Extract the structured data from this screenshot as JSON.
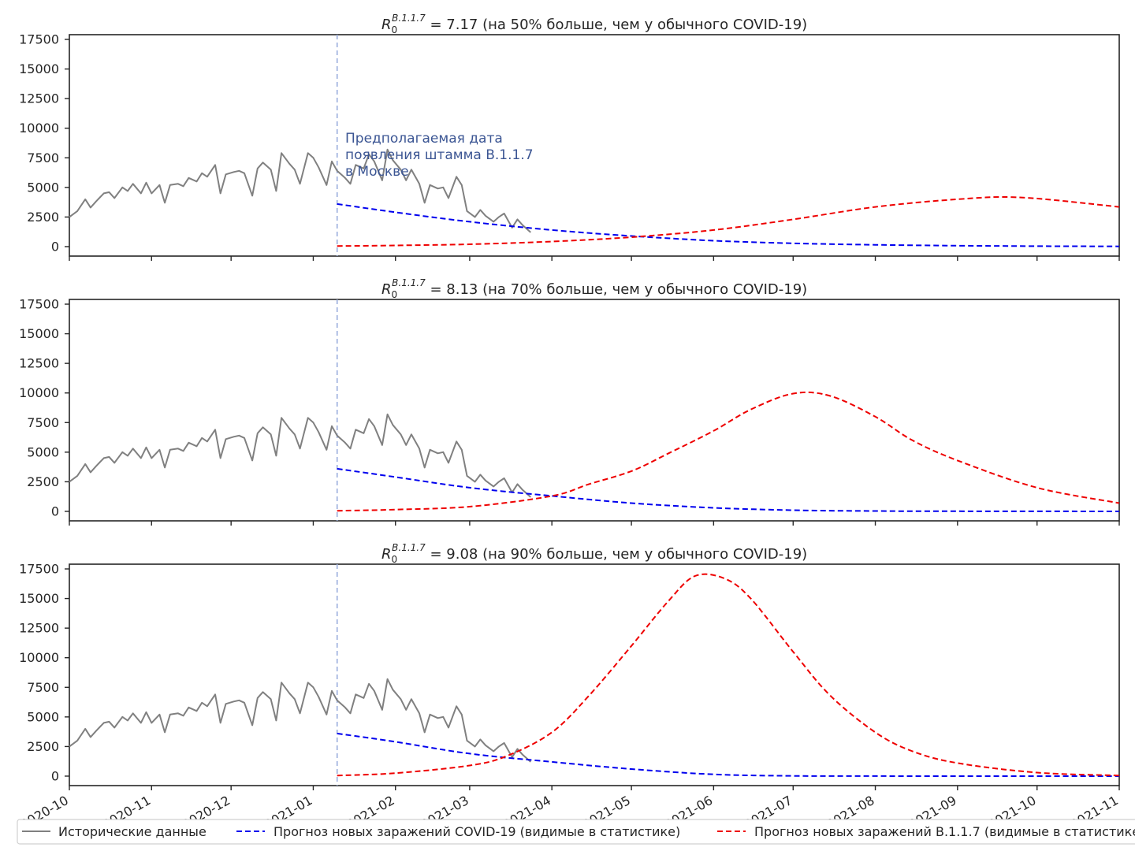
{
  "chart_data": {
    "type": "line",
    "x_ticks": [
      "2020-10",
      "2020-11",
      "2020-12",
      "2021-01",
      "2021-02",
      "2021-03",
      "2021-04",
      "2021-05",
      "2021-06",
      "2021-07",
      "2021-08",
      "2021-09",
      "2021-10",
      "2021-11"
    ],
    "xlim": [
      "2020-10-01",
      "2021-11-01"
    ],
    "y_ticks": [
      0,
      2500,
      5000,
      7500,
      10000,
      12500,
      15000,
      17500
    ],
    "ylim": [
      -800,
      17900
    ],
    "legend_position": "bottom",
    "legend": [
      {
        "label": "Исторические данные",
        "color": "#808080",
        "style": "solid"
      },
      {
        "label": "Прогноз новых заражений COVID-19 (видимые в статистике)",
        "color": "#0000ee",
        "style": "dashed"
      },
      {
        "label": "Прогноз новых заражений В.1.1.7 (видимые в статистике)",
        "color": "#ee0000",
        "style": "dashed"
      }
    ],
    "vline": {
      "date": "2021-01-10",
      "color": "#9aaedd"
    },
    "annotation": {
      "lines": [
        "Предполагаемая дата",
        "появления штамма В.1.1.7",
        "в Москве"
      ],
      "color": "#3b5593"
    },
    "historical": {
      "dates": [
        "2020-10-01",
        "2020-10-04",
        "2020-10-07",
        "2020-10-09",
        "2020-10-11",
        "2020-10-14",
        "2020-10-16",
        "2020-10-18",
        "2020-10-21",
        "2020-10-23",
        "2020-10-25",
        "2020-10-28",
        "2020-10-30",
        "2020-11-01",
        "2020-11-04",
        "2020-11-06",
        "2020-11-08",
        "2020-11-11",
        "2020-11-13",
        "2020-11-15",
        "2020-11-18",
        "2020-11-20",
        "2020-11-22",
        "2020-11-25",
        "2020-11-27",
        "2020-11-29",
        "2020-12-02",
        "2020-12-04",
        "2020-12-06",
        "2020-12-09",
        "2020-12-11",
        "2020-12-13",
        "2020-12-16",
        "2020-12-18",
        "2020-12-20",
        "2020-12-23",
        "2020-12-25",
        "2020-12-27",
        "2020-12-30",
        "2021-01-01",
        "2021-01-03",
        "2021-01-06",
        "2021-01-08",
        "2021-01-10",
        "2021-01-13",
        "2021-01-15",
        "2021-01-17",
        "2021-01-20",
        "2021-01-22",
        "2021-01-24",
        "2021-01-27",
        "2021-01-29",
        "2021-01-31",
        "2021-02-03",
        "2021-02-05",
        "2021-02-07",
        "2021-02-10",
        "2021-02-12",
        "2021-02-14",
        "2021-02-17",
        "2021-02-19",
        "2021-02-21",
        "2021-02-24",
        "2021-02-26",
        "2021-02-28",
        "2021-03-03",
        "2021-03-05",
        "2021-03-07",
        "2021-03-10",
        "2021-03-12",
        "2021-03-14",
        "2021-03-17",
        "2021-03-19",
        "2021-03-21",
        "2021-03-24"
      ],
      "values": [
        2500,
        3000,
        4000,
        3300,
        3800,
        4500,
        4600,
        4100,
        5000,
        4700,
        5300,
        4500,
        5400,
        4500,
        5200,
        3700,
        5200,
        5300,
        5100,
        5800,
        5500,
        6200,
        5900,
        6900,
        4500,
        6100,
        6300,
        6400,
        6200,
        4300,
        6600,
        7100,
        6500,
        4700,
        7900,
        7000,
        6500,
        5300,
        7900,
        7500,
        6700,
        5200,
        7200,
        6400,
        5800,
        5300,
        6900,
        6600,
        7800,
        7200,
        5600,
        8200,
        7300,
        6500,
        5600,
        6500,
        5300,
        3700,
        5200,
        4900,
        5000,
        4100,
        5900,
        5200,
        3000,
        2500,
        3100,
        2600,
        2100,
        2500,
        2800,
        1600,
        2300,
        1800,
        1200
      ]
    },
    "panels": [
      {
        "title": "R₀^B.1.1.7 = 7.17 (на 50% больше, чем у обычного COVID-19)",
        "title_lead": "R",
        "title_sub": "0",
        "title_sup": "B.1.1.7",
        "title_rest": " = 7.17 (на 50% больше, чем у обычного COVID-19)",
        "covid_forecast": {
          "dates": [
            "2021-01-10",
            "2021-02-01",
            "2021-03-01",
            "2021-04-01",
            "2021-05-01",
            "2021-06-01",
            "2021-07-01",
            "2021-08-01",
            "2021-09-01",
            "2021-10-01",
            "2021-11-01"
          ],
          "values": [
            3600,
            2900,
            2100,
            1400,
            900,
            500,
            280,
            150,
            80,
            40,
            20
          ]
        },
        "variant_forecast": {
          "dates": [
            "2021-01-10",
            "2021-02-01",
            "2021-03-01",
            "2021-04-01",
            "2021-05-01",
            "2021-06-01",
            "2021-07-01",
            "2021-08-01",
            "2021-09-01",
            "2021-09-25",
            "2021-11-01"
          ],
          "values": [
            50,
            100,
            200,
            430,
            800,
            1400,
            2300,
            3350,
            4000,
            4150,
            3350
          ]
        }
      },
      {
        "title": "R₀^B.1.1.7 = 8.13 (на 70% больше, чем у обычного COVID-19)",
        "title_lead": "R",
        "title_sub": "0",
        "title_sup": "B.1.1.7",
        "title_rest": " = 8.13 (на 70% больше, чем у обычного COVID-19)",
        "covid_forecast": {
          "dates": [
            "2021-01-10",
            "2021-02-01",
            "2021-03-01",
            "2021-04-01",
            "2021-05-01",
            "2021-06-01",
            "2021-07-01",
            "2021-08-01",
            "2021-09-01",
            "2021-10-01",
            "2021-11-01"
          ],
          "values": [
            3600,
            2900,
            2000,
            1300,
            700,
            300,
            100,
            30,
            10,
            5,
            0
          ]
        },
        "variant_forecast": {
          "dates": [
            "2021-01-10",
            "2021-02-01",
            "2021-03-01",
            "2021-04-01",
            "2021-04-15",
            "2021-05-01",
            "2021-05-15",
            "2021-06-01",
            "2021-06-15",
            "2021-07-01",
            "2021-07-15",
            "2021-08-01",
            "2021-08-15",
            "2021-09-01",
            "2021-10-01",
            "2021-11-01"
          ],
          "values": [
            50,
            150,
            400,
            1300,
            2300,
            3400,
            4900,
            6800,
            8600,
            9950,
            9750,
            8000,
            6000,
            4300,
            2000,
            700
          ]
        }
      },
      {
        "title": "R₀^B.1.1.7 = 9.08 (на 90% больше, чем у обычного COVID-19)",
        "title_lead": "R",
        "title_sub": "0",
        "title_sup": "B.1.1.7",
        "title_rest": " = 9.08 (на 90% больше, чем у обычного COVID-19)",
        "covid_forecast": {
          "dates": [
            "2021-01-10",
            "2021-02-01",
            "2021-03-01",
            "2021-04-01",
            "2021-05-01",
            "2021-06-01",
            "2021-07-01",
            "2021-08-01",
            "2021-09-01",
            "2021-10-01",
            "2021-11-01"
          ],
          "values": [
            3600,
            2900,
            1900,
            1200,
            600,
            150,
            20,
            5,
            0,
            0,
            0
          ]
        },
        "variant_forecast": {
          "dates": [
            "2021-01-10",
            "2021-02-01",
            "2021-03-01",
            "2021-03-15",
            "2021-04-01",
            "2021-04-15",
            "2021-05-01",
            "2021-05-15",
            "2021-05-25",
            "2021-06-05",
            "2021-06-15",
            "2021-07-01",
            "2021-07-15",
            "2021-08-01",
            "2021-08-15",
            "2021-09-01",
            "2021-10-01",
            "2021-11-01"
          ],
          "values": [
            50,
            250,
            900,
            1700,
            3700,
            6800,
            11000,
            14800,
            16900,
            16700,
            15000,
            10500,
            6800,
            3700,
            2100,
            1100,
            300,
            50
          ]
        }
      }
    ]
  }
}
